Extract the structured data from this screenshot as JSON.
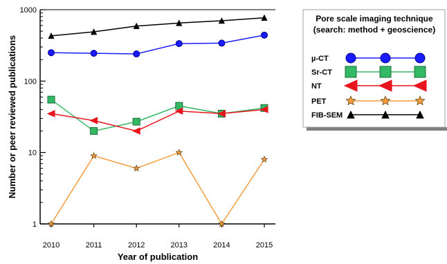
{
  "chart_data": {
    "type": "line",
    "xlabel": "Year of publication",
    "ylabel": "Number or peer reviewed publications",
    "y_scale": "log",
    "ylim": [
      1,
      1000
    ],
    "x": [
      2010,
      2011,
      2012,
      2013,
      2014,
      2015
    ],
    "x_ticks": [
      "2010",
      "2011",
      "2012",
      "2013",
      "2014",
      "2015"
    ],
    "y_ticks": [
      {
        "value": 1,
        "label": "1"
      },
      {
        "value": 10,
        "label": "10"
      },
      {
        "value": 100,
        "label": "100"
      },
      {
        "value": 1000,
        "label": "1000"
      }
    ],
    "grid": false,
    "legend": {
      "position": "right",
      "title_line1": "Pore scale imaging technique",
      "title_line2": "(search: method + geoscience)"
    },
    "series": [
      {
        "key": "muct",
        "name": "µ-CT",
        "color": "#1a1aff",
        "marker": "circle",
        "values": [
          250,
          245,
          240,
          335,
          340,
          440
        ]
      },
      {
        "key": "srct",
        "name": "Sr-CT",
        "color": "#33b864",
        "marker": "square",
        "values": [
          55,
          20,
          27,
          45,
          35,
          42
        ]
      },
      {
        "key": "nt",
        "name": "NT",
        "color": "#e8141e",
        "marker": "triangle-left",
        "values": [
          35,
          28,
          20,
          38,
          35,
          40
        ]
      },
      {
        "key": "pet",
        "name": "PET",
        "color": "#f59c3c",
        "marker": "star",
        "values": [
          1,
          9,
          6,
          10,
          1,
          8
        ]
      },
      {
        "key": "fibsem",
        "name": "FIB-SEM",
        "color": "#000000",
        "marker": "triangle-up",
        "values": [
          430,
          490,
          590,
          650,
          700,
          770
        ]
      }
    ]
  }
}
